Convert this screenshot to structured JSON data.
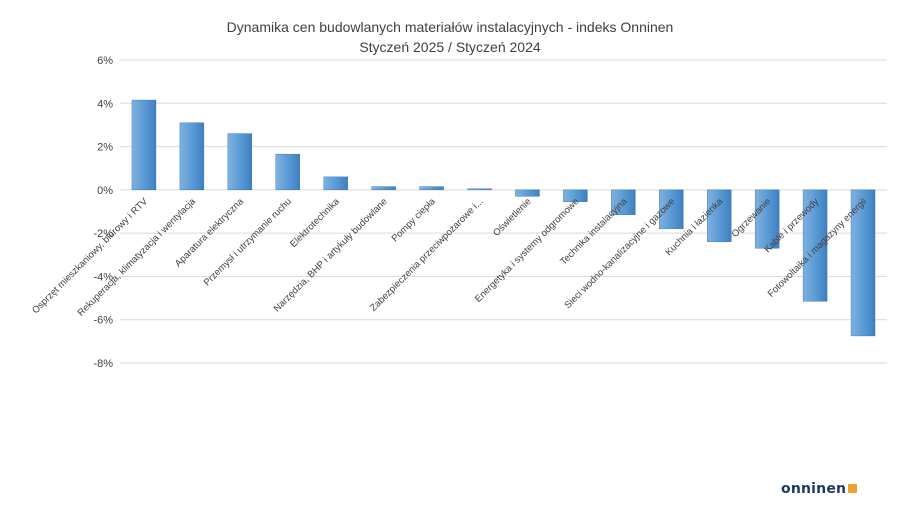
{
  "chart_data": {
    "type": "bar",
    "title": "Dynamika cen budowlanych materiałów instalacyjnych - indeks Onninen",
    "subtitle": "Styczeń 2025 / Styczeń 2024",
    "xlabel": "",
    "ylabel": "",
    "ylim": [
      -8,
      6
    ],
    "yticks": [
      "6%",
      "4%",
      "2%",
      "0%",
      "-2%",
      "-4%",
      "-6%",
      "-8%"
    ],
    "grid": true,
    "legend": "none",
    "bar_color": "#5b9bd5",
    "categories": [
      "Osprzęt mieszkaniowy, biurowy i RTV",
      "Rekuperacja, klimatyzacja i wentylacja",
      "Aparatura elektryczna",
      "Przemysł i utrzymanie ruchu",
      "Elektrotechnika",
      "Narzędzia, BHP i artykuły budowlane",
      "Pompy ciepła",
      "Zabezpieczenia przeciwpożarowe i...",
      "Oświetlenie",
      "Energetyka i systemy odgromowe",
      "Technika instalacyjna",
      "Sieci wodno-kanalizacyjne i gazowe",
      "Kuchnia i łazienka",
      "Ogrzewanie",
      "Kable i przewody",
      "Fotowoltaika i magazyny energii"
    ],
    "values": [
      4.15,
      3.1,
      2.6,
      1.65,
      0.6,
      0.15,
      0.15,
      0.05,
      -0.3,
      -0.55,
      -1.15,
      -1.8,
      -2.4,
      -2.7,
      -5.15,
      -6.75
    ]
  },
  "branding": {
    "logo_text": "onninen",
    "logo_accent": "#f0a030",
    "logo_color": "#1b3a6b"
  }
}
